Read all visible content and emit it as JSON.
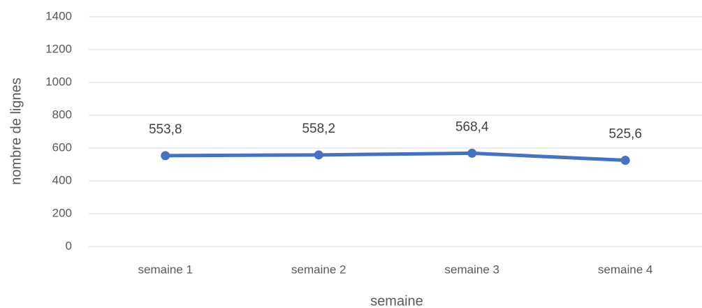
{
  "chart_data": {
    "type": "line",
    "categories": [
      "semaine 1",
      "semaine 2",
      "semaine 3",
      "semaine 4"
    ],
    "series": [
      {
        "name": "nombre de lignes",
        "color": "#4472c4",
        "values": [
          553.8,
          558.2,
          568.4,
          525.6
        ],
        "value_labels": [
          "553,8",
          "558,2",
          "568,4",
          "525,6"
        ]
      }
    ],
    "xlabel": "semaine",
    "ylabel": "nombre de lignes",
    "ylim": [
      0,
      1400
    ],
    "yticks": [
      0,
      200,
      400,
      600,
      800,
      1000,
      1200,
      1400
    ],
    "grid": true
  }
}
